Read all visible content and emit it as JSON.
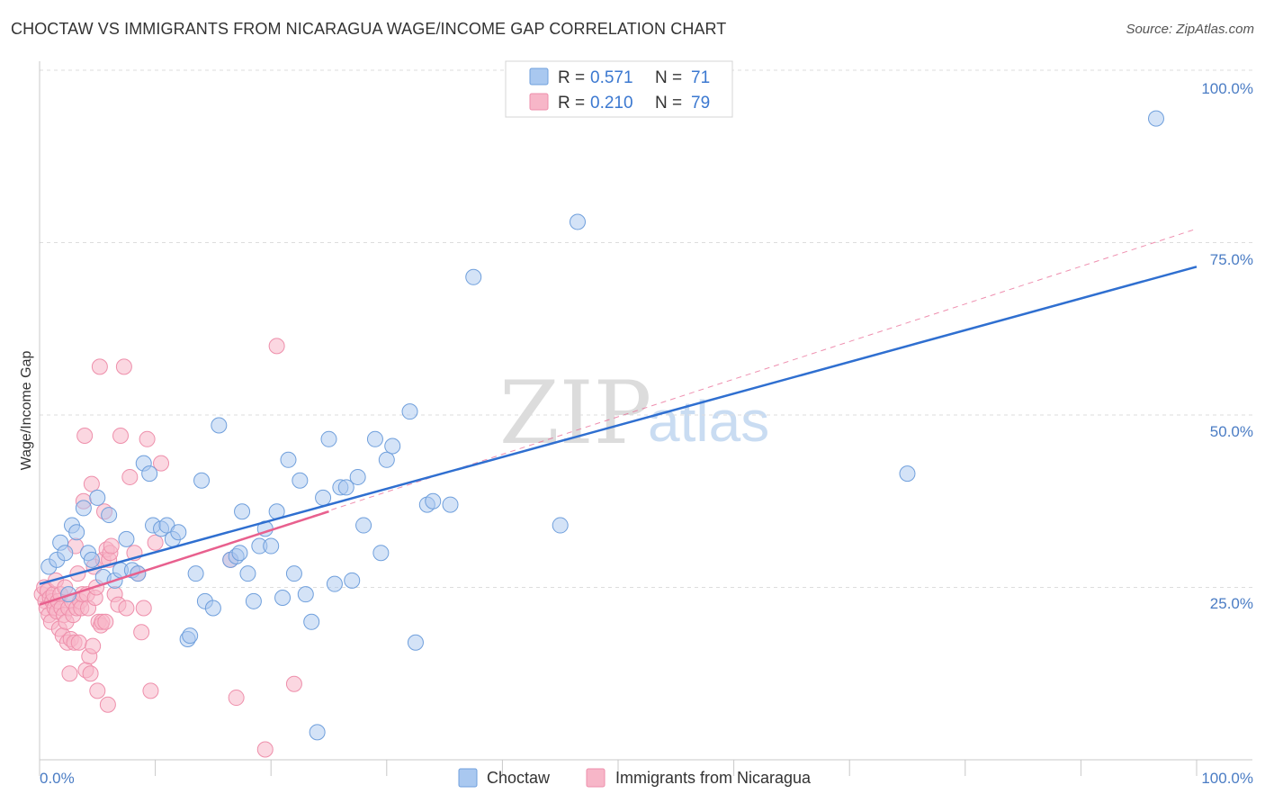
{
  "title": "CHOCTAW VS IMMIGRANTS FROM NICARAGUA WAGE/INCOME GAP CORRELATION CHART",
  "source": "Source: ZipAtlas.com",
  "watermark": {
    "zip": "ZIP",
    "atlas": "atlas"
  },
  "colors": {
    "choctaw_fill": "#a9c8f0",
    "choctaw_stroke": "#6f9fdc",
    "choctaw_line": "#2f6fd0",
    "nicaragua_fill": "#f7b6c8",
    "nicaragua_stroke": "#ee8fab",
    "nicaragua_line": "#e8608e",
    "tick_color": "#4a7cc4",
    "grid": "#dddddd"
  },
  "legend": {
    "items": [
      {
        "r_label": "R =",
        "r_value": "0.571",
        "n_label": "N =",
        "n_value": "71"
      },
      {
        "r_label": "R =",
        "r_value": "0.210",
        "n_label": "N =",
        "n_value": "79"
      }
    ]
  },
  "bottom_legend": [
    "Choctaw",
    "Immigrants from Nicaragua"
  ],
  "chart_data": {
    "type": "scatter",
    "title": "CHOCTAW VS IMMIGRANTS FROM NICARAGUA WAGE/INCOME GAP CORRELATION CHART",
    "xlabel": "",
    "ylabel": "Wage/Income Gap",
    "xlim": [
      0,
      100
    ],
    "ylim": [
      0,
      100
    ],
    "x_tick_labels": [
      "0.0%",
      "100.0%"
    ],
    "y_tick_labels": [
      "25.0%",
      "50.0%",
      "75.0%",
      "100.0%"
    ],
    "y_tick_values": [
      25,
      50,
      75,
      100
    ],
    "series": [
      {
        "name": "Choctaw",
        "R": 0.571,
        "N": 71,
        "trend": {
          "x": [
            0,
            100
          ],
          "y": [
            25.5,
            71.5
          ],
          "style": "solid"
        },
        "points": [
          [
            0.8,
            28
          ],
          [
            1.5,
            29
          ],
          [
            1.8,
            31.5
          ],
          [
            2.2,
            30
          ],
          [
            2.5,
            24
          ],
          [
            2.8,
            34
          ],
          [
            3.2,
            33
          ],
          [
            3.8,
            36.5
          ],
          [
            4.2,
            30
          ],
          [
            4.5,
            29
          ],
          [
            5.0,
            38
          ],
          [
            5.5,
            26.5
          ],
          [
            6.0,
            35.5
          ],
          [
            6.5,
            26
          ],
          [
            7.0,
            27.5
          ],
          [
            7.5,
            32
          ],
          [
            8.0,
            27.5
          ],
          [
            8.5,
            27
          ],
          [
            9.0,
            43
          ],
          [
            9.5,
            41.5
          ],
          [
            9.8,
            34
          ],
          [
            10.5,
            33.5
          ],
          [
            11,
            34
          ],
          [
            11.5,
            32
          ],
          [
            12.0,
            33
          ],
          [
            12.8,
            17.5
          ],
          [
            13.0,
            18
          ],
          [
            13.5,
            27
          ],
          [
            14.0,
            40.5
          ],
          [
            14.3,
            23
          ],
          [
            15.0,
            22
          ],
          [
            15.5,
            48.5
          ],
          [
            16.5,
            29
          ],
          [
            17.0,
            29.5
          ],
          [
            17.3,
            30
          ],
          [
            17.5,
            36
          ],
          [
            18,
            27
          ],
          [
            18.5,
            23
          ],
          [
            19.0,
            31
          ],
          [
            19.5,
            33.5
          ],
          [
            20.0,
            31
          ],
          [
            20.5,
            36
          ],
          [
            21.0,
            23.5
          ],
          [
            21.5,
            43.5
          ],
          [
            22.0,
            27
          ],
          [
            22.5,
            40.5
          ],
          [
            23.0,
            24
          ],
          [
            23.5,
            20
          ],
          [
            24.0,
            4
          ],
          [
            24.5,
            38
          ],
          [
            25.0,
            46.5
          ],
          [
            25.5,
            25.5
          ],
          [
            26.0,
            39.5
          ],
          [
            26.5,
            39.5
          ],
          [
            27.0,
            26
          ],
          [
            27.5,
            41
          ],
          [
            28.0,
            34
          ],
          [
            29.0,
            46.5
          ],
          [
            29.5,
            30
          ],
          [
            30.0,
            43.5
          ],
          [
            30.5,
            45.5
          ],
          [
            32.0,
            50.5
          ],
          [
            32.5,
            17
          ],
          [
            33.5,
            37
          ],
          [
            34.0,
            37.5
          ],
          [
            35.5,
            37
          ],
          [
            37.5,
            70
          ],
          [
            45.0,
            34
          ],
          [
            46.5,
            78
          ],
          [
            75.0,
            41.5
          ],
          [
            96.5,
            93
          ]
        ]
      },
      {
        "name": "Immigrants from Nicaragua",
        "R": 0.21,
        "N": 79,
        "trend": {
          "x": [
            0,
            25
          ],
          "y": [
            22.5,
            36
          ],
          "style": "solid"
        },
        "trend_extended": {
          "x": [
            0,
            100
          ],
          "y": [
            22.5,
            77
          ],
          "style": "dashed"
        },
        "points": [
          [
            0.2,
            24
          ],
          [
            0.4,
            25
          ],
          [
            0.5,
            23
          ],
          [
            0.6,
            22
          ],
          [
            0.7,
            24.5
          ],
          [
            0.8,
            21
          ],
          [
            0.9,
            23.5
          ],
          [
            1.0,
            20
          ],
          [
            1.1,
            23
          ],
          [
            1.2,
            24
          ],
          [
            1.3,
            22
          ],
          [
            1.4,
            26
          ],
          [
            1.5,
            21.5
          ],
          [
            1.6,
            23
          ],
          [
            1.7,
            19
          ],
          [
            1.8,
            24
          ],
          [
            1.9,
            22
          ],
          [
            2.0,
            18
          ],
          [
            2.1,
            21
          ],
          [
            2.2,
            25
          ],
          [
            2.3,
            20
          ],
          [
            2.4,
            17
          ],
          [
            2.5,
            22
          ],
          [
            2.6,
            12.5
          ],
          [
            2.7,
            17.5
          ],
          [
            2.8,
            23
          ],
          [
            2.9,
            21
          ],
          [
            3.0,
            17
          ],
          [
            3.1,
            31
          ],
          [
            3.2,
            22
          ],
          [
            3.3,
            27
          ],
          [
            3.4,
            17
          ],
          [
            3.5,
            23
          ],
          [
            3.6,
            22
          ],
          [
            3.7,
            24
          ],
          [
            3.8,
            37.5
          ],
          [
            3.9,
            47
          ],
          [
            4.0,
            13
          ],
          [
            4.1,
            24
          ],
          [
            4.2,
            22
          ],
          [
            4.3,
            15
          ],
          [
            4.4,
            12.5
          ],
          [
            4.5,
            40
          ],
          [
            4.6,
            16.5
          ],
          [
            4.7,
            28
          ],
          [
            4.8,
            23.5
          ],
          [
            4.9,
            25
          ],
          [
            5.0,
            10
          ],
          [
            5.1,
            20
          ],
          [
            5.2,
            57
          ],
          [
            5.3,
            19.5
          ],
          [
            5.4,
            20
          ],
          [
            5.5,
            29
          ],
          [
            5.6,
            36
          ],
          [
            5.7,
            20
          ],
          [
            5.8,
            30.5
          ],
          [
            5.9,
            8
          ],
          [
            6.0,
            29
          ],
          [
            6.1,
            30
          ],
          [
            6.2,
            31
          ],
          [
            6.5,
            24
          ],
          [
            6.8,
            22.5
          ],
          [
            7.0,
            47
          ],
          [
            7.3,
            57
          ],
          [
            7.5,
            22
          ],
          [
            7.8,
            41
          ],
          [
            8.2,
            30
          ],
          [
            8.5,
            27
          ],
          [
            8.8,
            18.5
          ],
          [
            9.0,
            22
          ],
          [
            9.3,
            46.5
          ],
          [
            9.6,
            10
          ],
          [
            10.0,
            31.5
          ],
          [
            10.5,
            43
          ],
          [
            16.5,
            29
          ],
          [
            17.0,
            9
          ],
          [
            19.5,
            1.5
          ],
          [
            20.5,
            60
          ],
          [
            22.0,
            11
          ]
        ]
      }
    ]
  }
}
